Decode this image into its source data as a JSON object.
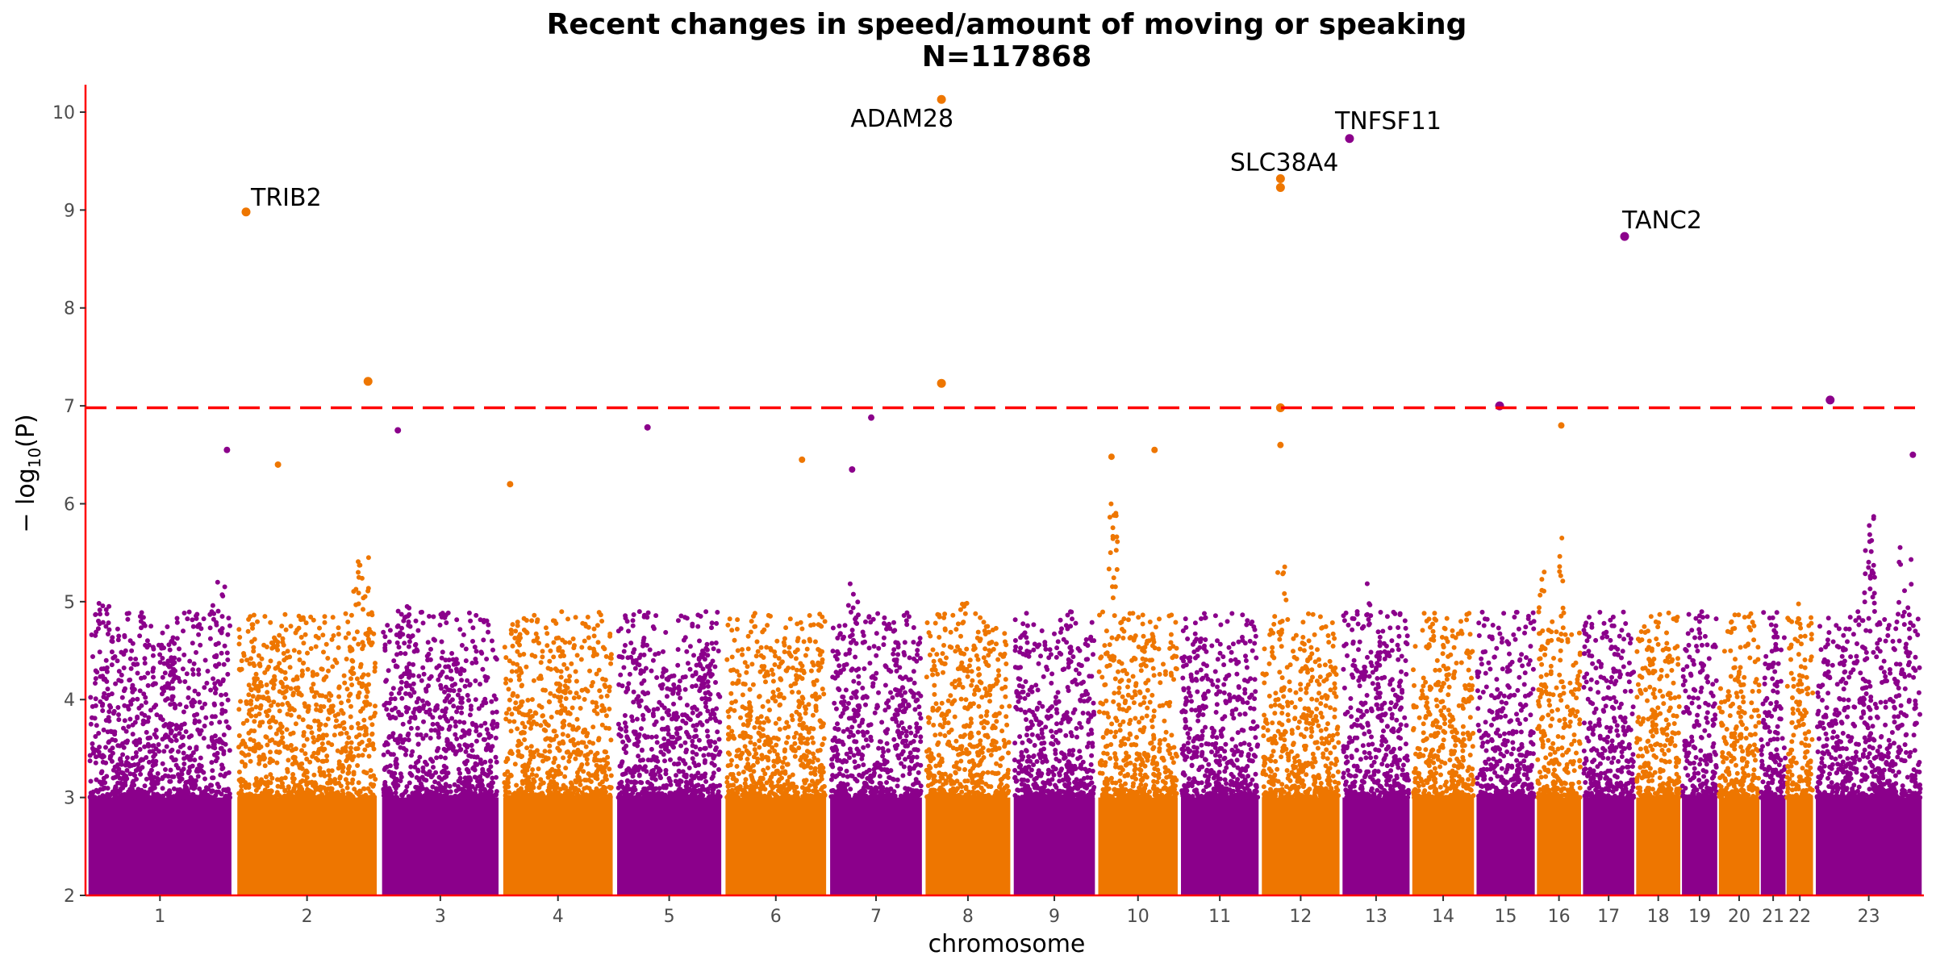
{
  "chart_data": {
    "type": "scatter",
    "title": "Recent changes in speed/amount of moving or speaking",
    "subtitle": "N=117868",
    "xlabel": "chromosome",
    "ylabel": "−log10(P)",
    "ylabel_main": "− log",
    "ylabel_sub": "10",
    "ylabel_tail": "(P)",
    "ylim": [
      2,
      10.28
    ],
    "y_ticks": [
      "2",
      "3",
      "4",
      "5",
      "6",
      "7",
      "8",
      "9",
      "10"
    ],
    "significance_threshold": 6.98,
    "colors": {
      "odd": "#8B008B",
      "even": "#EE7600",
      "threshold": "#FF0000",
      "axis": "#FF0000"
    },
    "chromosomes": [
      {
        "label": "1",
        "start": 0.0,
        "end": 8.1
      },
      {
        "label": "2",
        "start": 8.1,
        "end": 16.0
      },
      {
        "label": "3",
        "start": 16.0,
        "end": 22.6
      },
      {
        "label": "4",
        "start": 22.6,
        "end": 28.8
      },
      {
        "label": "5",
        "start": 28.8,
        "end": 34.7
      },
      {
        "label": "6",
        "start": 34.7,
        "end": 40.4
      },
      {
        "label": "7",
        "start": 40.4,
        "end": 45.6
      },
      {
        "label": "8",
        "start": 45.6,
        "end": 50.4
      },
      {
        "label": "9",
        "start": 50.4,
        "end": 55.0
      },
      {
        "label": "10",
        "start": 55.0,
        "end": 59.5
      },
      {
        "label": "11",
        "start": 59.5,
        "end": 63.9
      },
      {
        "label": "12",
        "start": 63.9,
        "end": 68.3
      },
      {
        "label": "13",
        "start": 68.3,
        "end": 72.1
      },
      {
        "label": "14",
        "start": 72.1,
        "end": 75.6
      },
      {
        "label": "15",
        "start": 75.6,
        "end": 78.9
      },
      {
        "label": "16",
        "start": 78.9,
        "end": 81.4
      },
      {
        "label": "17",
        "start": 81.4,
        "end": 84.3
      },
      {
        "label": "18",
        "start": 84.3,
        "end": 86.8
      },
      {
        "label": "19",
        "start": 86.8,
        "end": 88.8
      },
      {
        "label": "20",
        "start": 88.8,
        "end": 91.1
      },
      {
        "label": "21",
        "start": 91.1,
        "end": 92.5
      },
      {
        "label": "22",
        "start": 92.5,
        "end": 94.0
      },
      {
        "label": "23",
        "start": 94.0,
        "end": 100.0
      }
    ],
    "peaks": [
      {
        "chr": 1,
        "pos": 0.95,
        "y": 6.55
      },
      {
        "chr": 2,
        "pos": 0.08,
        "y": 8.98
      },
      {
        "chr": 2,
        "pos": 0.3,
        "y": 6.4
      },
      {
        "chr": 2,
        "pos": 0.92,
        "y": 7.25
      },
      {
        "chr": 3,
        "pos": 0.15,
        "y": 6.75
      },
      {
        "chr": 4,
        "pos": 0.08,
        "y": 6.2
      },
      {
        "chr": 5,
        "pos": 0.3,
        "y": 6.78
      },
      {
        "chr": 6,
        "pos": 0.75,
        "y": 6.45
      },
      {
        "chr": 7,
        "pos": 0.45,
        "y": 6.88
      },
      {
        "chr": 7,
        "pos": 0.25,
        "y": 6.35
      },
      {
        "chr": 8,
        "pos": 0.2,
        "y": 10.13
      },
      {
        "chr": 8,
        "pos": 0.2,
        "y": 7.23
      },
      {
        "chr": 10,
        "pos": 0.18,
        "y": 6.48
      },
      {
        "chr": 10,
        "pos": 0.7,
        "y": 6.55
      },
      {
        "chr": 12,
        "pos": 0.25,
        "y": 9.32
      },
      {
        "chr": 12,
        "pos": 0.25,
        "y": 9.23
      },
      {
        "chr": 12,
        "pos": 0.25,
        "y": 6.98
      },
      {
        "chr": 12,
        "pos": 0.25,
        "y": 6.6
      },
      {
        "chr": 13,
        "pos": 0.12,
        "y": 9.73
      },
      {
        "chr": 15,
        "pos": 0.4,
        "y": 7.0
      },
      {
        "chr": 16,
        "pos": 0.55,
        "y": 6.8
      },
      {
        "chr": 17,
        "pos": 0.8,
        "y": 8.73
      },
      {
        "chr": 23,
        "pos": 0.15,
        "y": 7.06
      },
      {
        "chr": 23,
        "pos": 0.9,
        "y": 6.5
      }
    ],
    "annotations": [
      {
        "label": "TRIB2",
        "chr": 2,
        "pos": 0.08,
        "y": 8.98,
        "anchor": "start",
        "dx": 6,
        "dy": -8
      },
      {
        "label": "ADAM28",
        "chr": 8,
        "pos": 0.2,
        "y": 10.13,
        "anchor": "end",
        "dx": 15,
        "dy": 34
      },
      {
        "label": "SLC38A4",
        "chr": 12,
        "pos": 0.25,
        "y": 9.32,
        "anchor": "end",
        "dx": 72,
        "dy": -10
      },
      {
        "label": "TNFSF11",
        "chr": 13,
        "pos": 0.12,
        "y": 9.73,
        "anchor": "start",
        "dx": -18,
        "dy": -12
      },
      {
        "label": "TANC2",
        "chr": 17,
        "pos": 0.8,
        "y": 8.73,
        "anchor": "start",
        "dx": -3,
        "dy": -10
      }
    ]
  }
}
